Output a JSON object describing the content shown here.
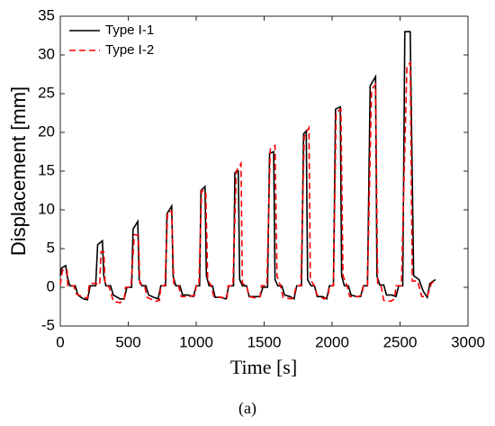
{
  "chart_data": {
    "type": "line",
    "xlabel": "Time [s]",
    "ylabel": "Displacement [mm]",
    "caption": "(a)",
    "xlim": [
      0,
      3000
    ],
    "xticks": [
      0,
      500,
      1000,
      1500,
      2000,
      2500,
      3000
    ],
    "ylim": [
      -5,
      35
    ],
    "yticks": [
      -5,
      0,
      5,
      10,
      15,
      20,
      25,
      30,
      35
    ],
    "legend": "upper left",
    "series": [
      {
        "name": "Type I-1",
        "color": "#000000",
        "linestyle": "solid",
        "x": [
          0,
          10,
          40,
          50,
          70,
          110,
          130,
          170,
          200,
          220,
          260,
          275,
          310,
          320,
          335,
          370,
          390,
          440,
          470,
          490,
          525,
          535,
          570,
          580,
          600,
          630,
          650,
          690,
          720,
          740,
          775,
          785,
          820,
          830,
          850,
          880,
          900,
          940,
          980,
          1000,
          1025,
          1035,
          1065,
          1075,
          1095,
          1120,
          1140,
          1180,
          1220,
          1240,
          1275,
          1285,
          1310,
          1320,
          1340,
          1370,
          1390,
          1440,
          1470,
          1490,
          1525,
          1540,
          1570,
          1580,
          1600,
          1630,
          1650,
          1690,
          1720,
          1740,
          1775,
          1790,
          1810,
          1820,
          1845,
          1870,
          1890,
          1930,
          1960,
          1980,
          2010,
          2025,
          2060,
          2070,
          2090,
          2120,
          2140,
          2180,
          2210,
          2230,
          2260,
          2280,
          2320,
          2330,
          2350,
          2380,
          2400,
          2440,
          2470,
          2490,
          2520,
          2535,
          2575,
          2600,
          2640,
          2670,
          2700,
          2720,
          2760
        ],
        "values": [
          1.5,
          2.5,
          2.8,
          1.5,
          0.2,
          0.2,
          -1,
          -1.5,
          -1.6,
          0.2,
          0.2,
          5.5,
          6,
          1.5,
          0.2,
          0.2,
          -1,
          -1.5,
          -1.5,
          0,
          0,
          7.5,
          8.5,
          1,
          0.2,
          0.2,
          -1,
          -1.3,
          -1.5,
          0.2,
          0.2,
          9.5,
          10.5,
          1.5,
          0.2,
          0.2,
          -1,
          -1,
          -1.2,
          0.2,
          0.2,
          12.5,
          13,
          1.5,
          0.2,
          0.2,
          -1.3,
          -1.3,
          -1.5,
          0.2,
          0.2,
          14.8,
          15,
          1,
          0.2,
          0.2,
          -1.2,
          -1.2,
          -1.2,
          0,
          0,
          17.3,
          17.5,
          1,
          0.2,
          0.2,
          -1,
          -1.2,
          -1.5,
          0.2,
          0.2,
          19.8,
          20.2,
          1,
          0.2,
          0.2,
          -1.2,
          -1.2,
          -1.5,
          0.2,
          0.2,
          23,
          23.3,
          1.5,
          0.2,
          0.2,
          -1,
          -1.2,
          -1.2,
          0.2,
          0.2,
          26,
          27.2,
          1.5,
          0.3,
          0.3,
          -1,
          -1,
          -1.2,
          0.2,
          0.2,
          33,
          33,
          1.5,
          1,
          -0.5,
          -1.3,
          0.5,
          1
        ]
      },
      {
        "name": "Type I-2",
        "color": "#ff0000",
        "linestyle": "dashed",
        "x": [
          0,
          15,
          50,
          55,
          100,
          115,
          170,
          200,
          215,
          260,
          290,
          300,
          320,
          330,
          360,
          390,
          440,
          470,
          480,
          520,
          545,
          575,
          585,
          620,
          640,
          700,
          730,
          740,
          770,
          790,
          820,
          835,
          870,
          890,
          950,
          990,
          1000,
          1020,
          1040,
          1070,
          1085,
          1110,
          1130,
          1190,
          1225,
          1235,
          1270,
          1295,
          1330,
          1340,
          1370,
          1390,
          1440,
          1470,
          1480,
          1520,
          1545,
          1580,
          1595,
          1620,
          1640,
          1700,
          1720,
          1735,
          1770,
          1795,
          1830,
          1840,
          1870,
          1890,
          1940,
          1970,
          1980,
          2010,
          2030,
          2065,
          2080,
          2110,
          2130,
          2190,
          2220,
          2230,
          2260,
          2290,
          2320,
          2335,
          2360,
          2380,
          2430,
          2460,
          2470,
          2510,
          2550,
          2575,
          2590,
          2630,
          2660,
          2700,
          2730,
          2750
        ],
        "values": [
          0.3,
          2.2,
          2.3,
          0.2,
          0.2,
          -0.8,
          -1.3,
          -1.4,
          0.5,
          0.5,
          0.3,
          4.6,
          4.6,
          0.5,
          0,
          -1.8,
          -2,
          -1.5,
          0,
          0,
          6.8,
          6.7,
          0.5,
          0.2,
          -1.3,
          -1.8,
          -1.7,
          0.2,
          0.2,
          9.8,
          9.8,
          0.5,
          0.2,
          -1.2,
          -1.2,
          -1,
          0.2,
          0.2,
          12.5,
          12.4,
          1,
          0.2,
          -1.2,
          -1.3,
          -1.5,
          0.2,
          0.2,
          15,
          16,
          0.5,
          0.2,
          -1.2,
          -1.4,
          -1.2,
          0.2,
          0.2,
          17.8,
          18.3,
          1.5,
          0.2,
          -1.3,
          -1.5,
          -1.2,
          0.2,
          0.2,
          19.5,
          20.6,
          1,
          0.2,
          -1,
          -1.5,
          -1.2,
          0.2,
          0.2,
          22.6,
          23,
          1.5,
          0.2,
          -1.2,
          -1.2,
          -1,
          0.2,
          0.2,
          25.5,
          26.2,
          0.5,
          0.2,
          -1.7,
          -1.8,
          -1.5,
          0.2,
          0.2,
          28.5,
          29,
          0.8,
          0.8,
          -1.2,
          -1.2,
          0.5,
          0.8
        ]
      }
    ]
  }
}
